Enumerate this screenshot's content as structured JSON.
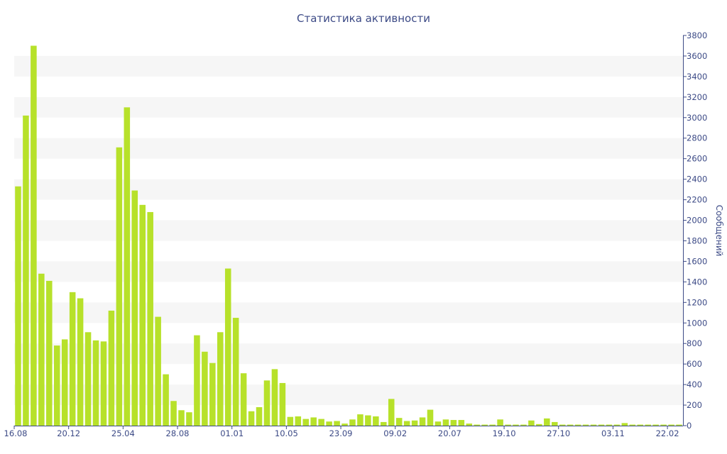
{
  "chart_data": {
    "type": "bar",
    "title": "Статистика активности",
    "ylabel": "Сообщений",
    "xlabel": "",
    "ylim": [
      0,
      3800
    ],
    "y_ticks": [
      0,
      200,
      400,
      600,
      800,
      1000,
      1200,
      1400,
      1600,
      1800,
      2000,
      2200,
      2400,
      2600,
      2800,
      3000,
      3200,
      3400,
      3600,
      3800
    ],
    "y_axis_position": "right",
    "x_tick_labels": [
      "16.08",
      "20.12",
      "25.04",
      "28.08",
      "01.01",
      "10.05",
      "23.09",
      "09.02",
      "20.07",
      "19.10",
      "27.10",
      "03.11",
      "22.02"
    ],
    "x_tick_label_bar_index": [
      0,
      7,
      14,
      21,
      28,
      35,
      42,
      49,
      56,
      63,
      70,
      77,
      84
    ],
    "grid": "alternating horizontal bands",
    "legend": "none",
    "colors": {
      "bar": "#b7e12a",
      "axis": "#3c4a86",
      "band": "#f6f6f6"
    },
    "values": [
      2330,
      3020,
      3700,
      1480,
      1410,
      780,
      840,
      1300,
      1240,
      910,
      830,
      820,
      1120,
      2710,
      3100,
      2290,
      2150,
      2080,
      1060,
      500,
      240,
      150,
      130,
      880,
      720,
      610,
      910,
      1530,
      1050,
      510,
      140,
      180,
      440,
      550,
      415,
      85,
      90,
      65,
      80,
      65,
      40,
      45,
      20,
      60,
      110,
      100,
      90,
      35,
      260,
      75,
      45,
      50,
      80,
      155,
      40,
      60,
      55,
      55,
      20,
      10,
      10,
      10,
      60,
      10,
      10,
      10,
      50,
      15,
      70,
      35,
      10,
      10,
      10,
      10,
      10,
      10,
      10,
      10,
      25,
      10,
      10,
      10,
      10,
      10,
      10,
      10
    ]
  }
}
